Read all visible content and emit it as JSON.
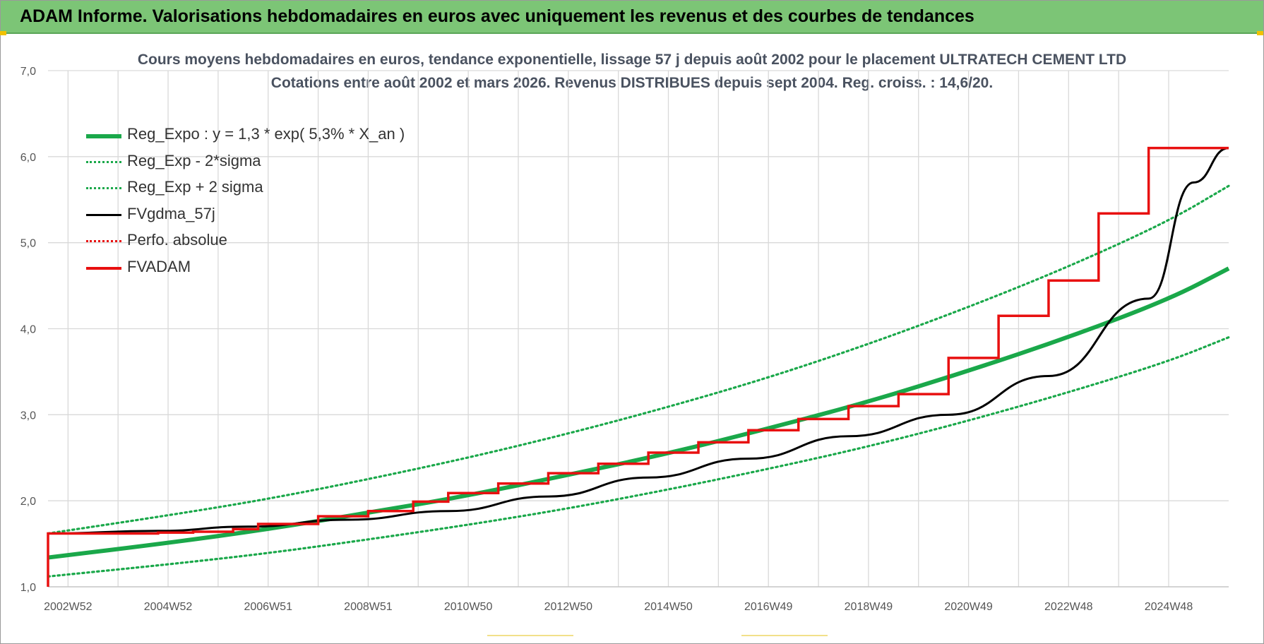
{
  "banner": {
    "title": "ADAM Informe. Valorisations hebdomadaires en euros avec uniquement les revenus et des courbes de tendances"
  },
  "colors": {
    "banner_bg": "#7cc576",
    "trend": "#1aa84a",
    "fv57": "#000000",
    "fvadam": "#e81010",
    "perfo": "#e81010",
    "grid": "#d9d9d9",
    "axis_text": "#555555"
  },
  "chart_data": {
    "type": "line",
    "title": "Cours moyens hebdomadaires en euros, tendance exponentielle, lissage 57 j depuis août 2002 pour le placement ULTRATECH CEMENT LTD",
    "subtitle": "Cotations entre août 2002 et mars 2026.  Revenus DISTRIBUES depuis sept 2004.  Reg. croiss. : 14,6/20.",
    "xlabel": "",
    "ylabel": "",
    "ylim": [
      1.0,
      7.0
    ],
    "yticks": [
      "1,0",
      "2,0",
      "3,0",
      "4,0",
      "5,0",
      "6,0",
      "7,0"
    ],
    "ytick_values": [
      1,
      2,
      3,
      4,
      5,
      6,
      7
    ],
    "xlim": [
      2002.6,
      2026.2
    ],
    "xticks": [
      "2002W52",
      "2004W52",
      "2006W51",
      "2008W51",
      "2010W50",
      "2012W50",
      "2014W50",
      "2016W49",
      "2018W49",
      "2020W49",
      "2022W48",
      "2024W48"
    ],
    "xtick_values": [
      2003.0,
      2005.0,
      2007.0,
      2009.0,
      2011.0,
      2013.0,
      2015.0,
      2017.0,
      2019.0,
      2021.0,
      2023.0,
      2025.0
    ],
    "x_gridlines": [
      2000.0,
      2001.0,
      2002.0,
      2003.0,
      2004.0,
      2005.0,
      2006.0,
      2007.0,
      2008.0,
      2009.0,
      2010.0,
      2011.0,
      2012.0,
      2013.0,
      2014.0,
      2015.0,
      2016.0,
      2017.0,
      2018.0,
      2019.0,
      2020.0,
      2021.0,
      2022.0,
      2023.0,
      2024.0,
      2025.0
    ],
    "grid": true,
    "legend_position": "top-left",
    "series": [
      {
        "name": "Reg_Expo : y = 1,3 * exp( 5,3% *  X_an )",
        "style": "solid-thick",
        "color": "#1aa84a",
        "x": [
          2002.6,
          2005,
          2007,
          2009,
          2011,
          2013,
          2015,
          2017,
          2019,
          2021,
          2023,
          2025,
          2026.2
        ],
        "values": [
          1.34,
          1.51,
          1.67,
          1.86,
          2.06,
          2.3,
          2.55,
          2.84,
          3.15,
          3.51,
          3.9,
          4.34,
          4.7
        ]
      },
      {
        "name": "Reg_Exp - 2*sigma",
        "style": "dotted",
        "color": "#1aa84a",
        "x": [
          2002.6,
          2005,
          2007,
          2009,
          2011,
          2013,
          2015,
          2017,
          2019,
          2021,
          2023,
          2025,
          2026.2
        ],
        "values": [
          1.12,
          1.26,
          1.39,
          1.55,
          1.72,
          1.91,
          2.13,
          2.37,
          2.63,
          2.93,
          3.26,
          3.62,
          3.9
        ]
      },
      {
        "name": "Reg_Exp + 2 sigma",
        "style": "dotted",
        "color": "#1aa84a",
        "x": [
          2002.6,
          2005,
          2007,
          2009,
          2011,
          2013,
          2015,
          2017,
          2019,
          2021,
          2023,
          2025,
          2026.2
        ],
        "values": [
          1.62,
          1.83,
          2.02,
          2.25,
          2.5,
          2.78,
          3.09,
          3.43,
          3.82,
          4.25,
          4.72,
          5.25,
          5.66
        ]
      },
      {
        "name": "FVgdma_57j",
        "style": "smooth-steps",
        "color": "#000000",
        "x": [
          2002.6,
          2004.8,
          2006.6,
          2008.6,
          2010.6,
          2012.6,
          2014.6,
          2016.6,
          2018.6,
          2020.6,
          2022.6,
          2024.6,
          2025.5,
          2026.2
        ],
        "values": [
          1.62,
          1.65,
          1.7,
          1.78,
          1.88,
          2.05,
          2.27,
          2.49,
          2.75,
          3.0,
          3.45,
          4.35,
          5.7,
          6.1
        ]
      },
      {
        "name": "Perfo. absolue",
        "style": "dotted",
        "color": "#e81010",
        "x": [],
        "values": []
      },
      {
        "name": "FVADAM",
        "style": "step",
        "color": "#e81010",
        "x": [
          2002.6,
          2002.6,
          2004.8,
          2005.5,
          2006.3,
          2006.8,
          2008.0,
          2009.0,
          2009.9,
          2010.6,
          2011.6,
          2012.6,
          2013.6,
          2014.6,
          2015.6,
          2016.6,
          2017.6,
          2018.6,
          2019.6,
          2020.6,
          2021.6,
          2022.6,
          2023.6,
          2024.6,
          2025.6,
          2026.2
        ],
        "values": [
          1.0,
          1.62,
          1.63,
          1.64,
          1.67,
          1.73,
          1.82,
          1.88,
          1.99,
          2.09,
          2.2,
          2.32,
          2.43,
          2.56,
          2.68,
          2.82,
          2.95,
          3.1,
          3.24,
          3.66,
          4.15,
          4.56,
          5.34,
          6.1,
          6.1,
          6.1
        ]
      }
    ]
  }
}
